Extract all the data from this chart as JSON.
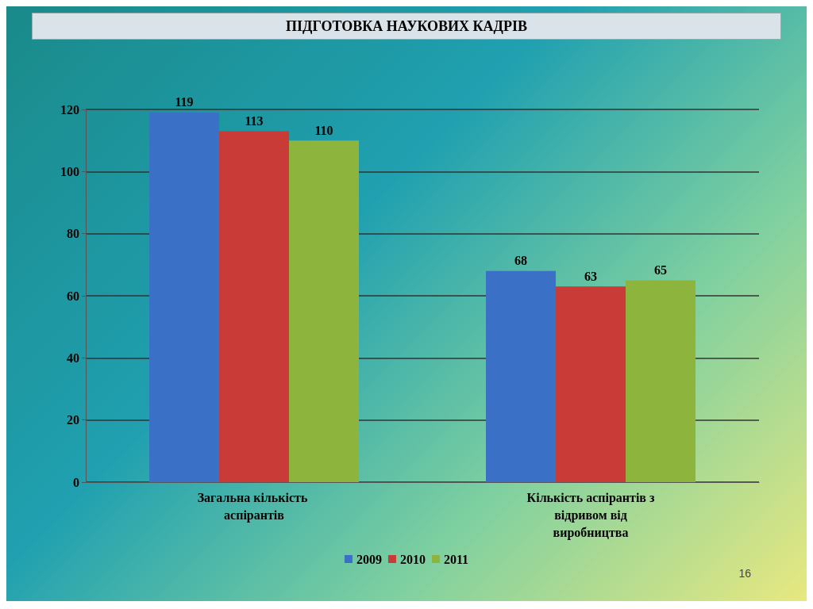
{
  "chart_data": {
    "type": "bar",
    "title": "ПІДГОТОВКА НАУКОВИХ КАДРІВ",
    "categories": [
      "Загальна кількість аспірантів",
      "Кількість аспірантів з відривом від виробництва"
    ],
    "series": [
      {
        "name": "2009",
        "color": "#3a70c6",
        "values": [
          119,
          68
        ]
      },
      {
        "name": "2010",
        "color": "#c83b36",
        "values": [
          113,
          63
        ]
      },
      {
        "name": "2011",
        "color": "#8db53e",
        "values": [
          110,
          65
        ]
      }
    ],
    "ylim": [
      0,
      120
    ],
    "yticks": [
      0,
      20,
      40,
      60,
      80,
      100,
      120
    ],
    "grid": "y",
    "legend": "bottom",
    "data_labels": true,
    "annotations": [
      "16"
    ]
  }
}
